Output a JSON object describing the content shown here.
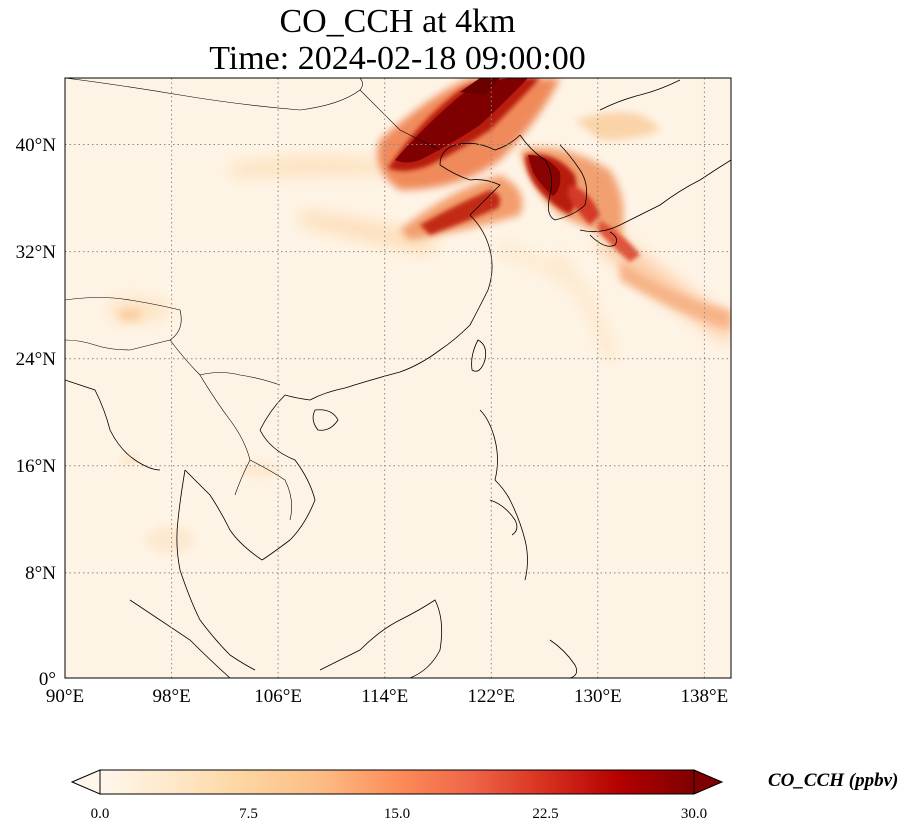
{
  "title_line1": "CO_CCH at 4km",
  "title_line2": "Time: 2024-02-18 09:00:00",
  "map": {
    "lon_range": [
      90,
      140
    ],
    "lat_range": [
      0,
      44
    ],
    "lon_ticks": [
      "90°E",
      "98°E",
      "106°E",
      "114°E",
      "122°E",
      "130°E",
      "138°E"
    ],
    "lat_ticks": [
      "0°",
      "8°N",
      "16°N",
      "24°N",
      "32°N",
      "40°N"
    ],
    "gridlines": "dotted"
  },
  "colorbar": {
    "label": "CO_CCH (ppbv)",
    "ticks": [
      "0.0",
      "7.5",
      "15.0",
      "22.5",
      "30.0"
    ],
    "range": [
      0,
      30
    ],
    "extend": "both",
    "colormap": "OrRd",
    "colors": [
      "#fff7ec",
      "#fee8c8",
      "#fdd49e",
      "#fdbb84",
      "#fc8d59",
      "#ef6548",
      "#d7301f",
      "#b30000",
      "#7f0000"
    ]
  }
}
